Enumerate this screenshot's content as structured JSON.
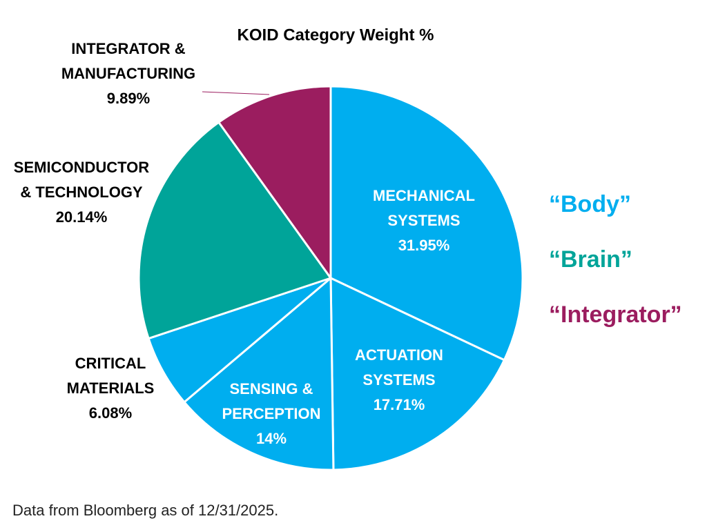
{
  "chart_data": {
    "type": "pie",
    "title": "KOID Category Weight %",
    "categories": [
      "MECHANICAL\nSYSTEMS",
      "ACTUATION\nSYSTEMS",
      "SENSING &\nPERCEPTION",
      "CRITICAL\nMATERIALS",
      "SEMICONDUCTOR\n& TECHNOLOGY",
      "INTEGRATOR &\nMANUFACTURING"
    ],
    "values": [
      31.95,
      17.71,
      14,
      6.08,
      20.14,
      9.89
    ],
    "value_labels": [
      "31.95%",
      "17.71%",
      "14%",
      "6.08%",
      "20.14%",
      "9.89%"
    ],
    "colors": [
      "#00aeef",
      "#00aeef",
      "#00aeef",
      "#00aeef",
      "#00a499",
      "#9b1d5f"
    ],
    "annotations": [
      {
        "text": "“Body”",
        "color": "#00aeef"
      },
      {
        "text": "“Brain”",
        "color": "#00a499"
      },
      {
        "text": "“Integrator”",
        "color": "#9b1d5f"
      }
    ],
    "footnote": "Data from Bloomberg as of 12/31/2025."
  }
}
